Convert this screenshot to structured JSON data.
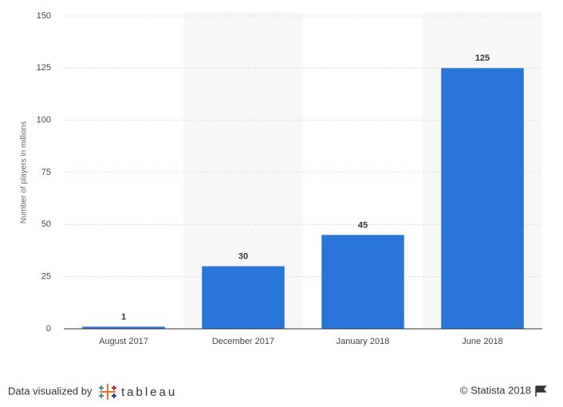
{
  "chart_data": {
    "type": "bar",
    "y_label": "Number of players in millions",
    "categories": [
      "August 2017",
      "December 2017",
      "January 2018",
      "June 2018"
    ],
    "values": [
      1,
      30,
      45,
      125
    ],
    "color": "#2a75d9",
    "ylim": [
      0,
      150
    ],
    "yticks": [
      0,
      25,
      50,
      75,
      100,
      125,
      150
    ],
    "grid": true
  },
  "footer": {
    "credit": "Data visualized by",
    "brand": "tableau",
    "source": "© Statista 2018"
  }
}
